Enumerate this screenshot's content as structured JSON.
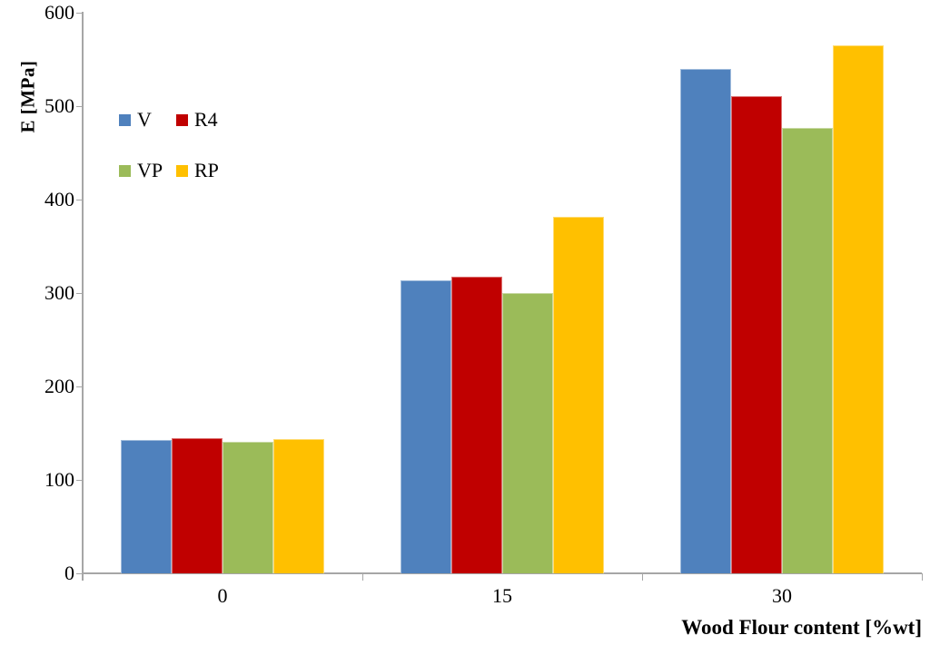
{
  "chart_data": {
    "type": "bar",
    "title": "",
    "xlabel": "Wood Flour content [%wt]",
    "ylabel": "E [MPa]",
    "categories": [
      "0",
      "15",
      "30"
    ],
    "series": [
      {
        "name": "V",
        "color": "#4F81BD",
        "values": [
          143,
          314,
          540
        ]
      },
      {
        "name": "R4",
        "color": "#C00000",
        "values": [
          145,
          317,
          511
        ]
      },
      {
        "name": "VP",
        "color": "#9BBB59",
        "values": [
          141,
          300,
          477
        ]
      },
      {
        "name": "RP",
        "color": "#FFC000",
        "values": [
          144,
          382,
          565
        ]
      }
    ],
    "ylim": [
      0,
      600
    ],
    "yticks": [
      0,
      100,
      200,
      300,
      400,
      500,
      600
    ],
    "grid": false,
    "legend_position": "inside-top-left",
    "axis_color": "#A6A6A6",
    "text_color": "#000000"
  }
}
